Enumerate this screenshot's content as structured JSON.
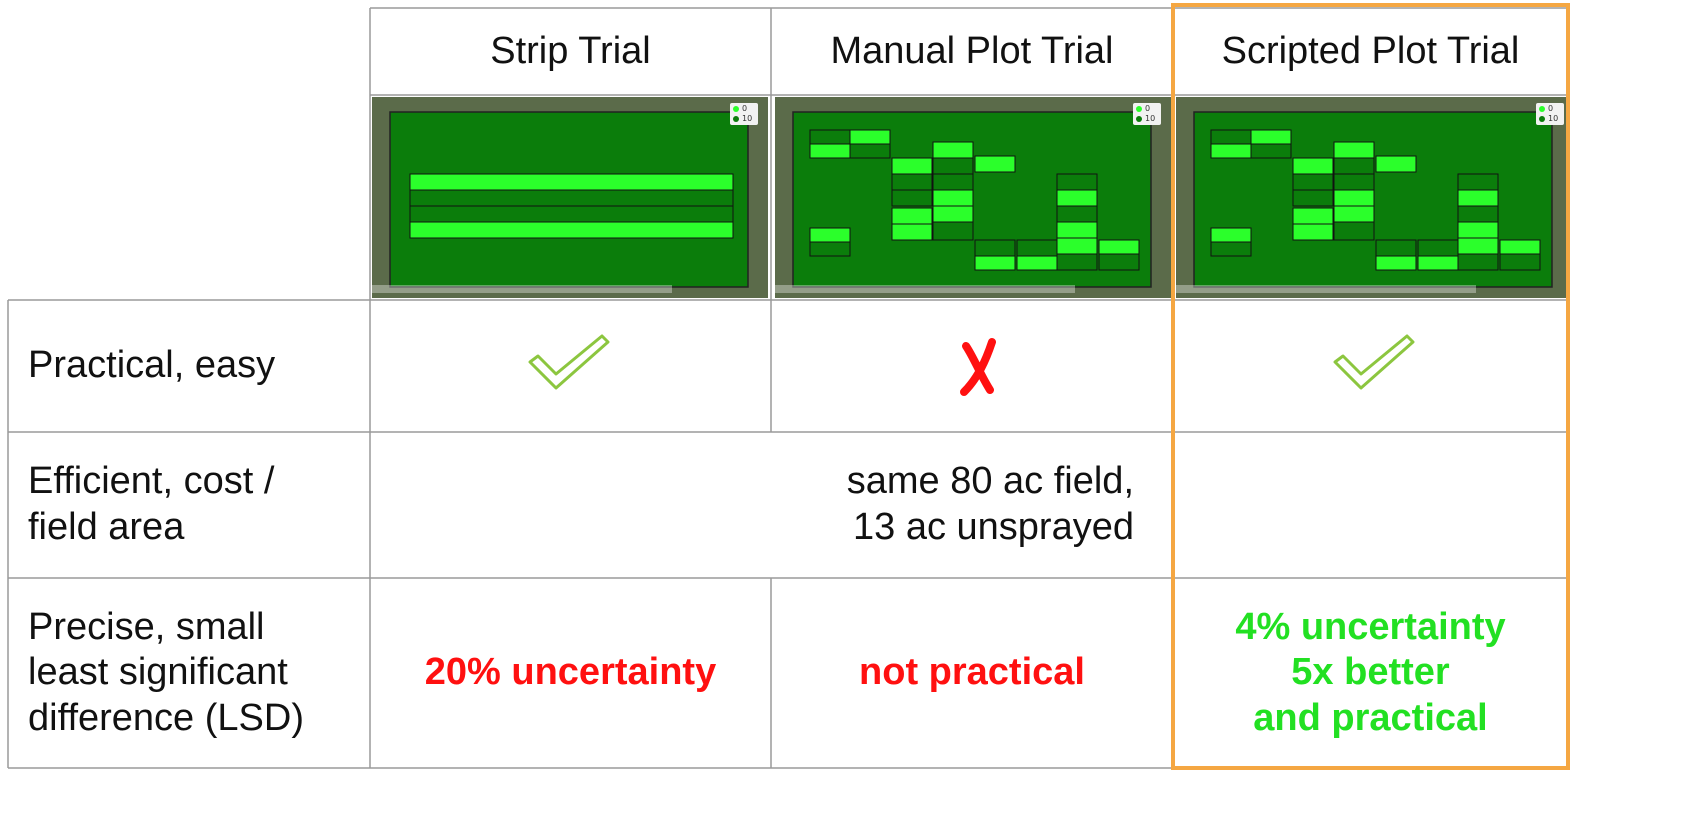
{
  "table": {
    "columns": [
      "Strip Trial",
      "Manual Plot Trial",
      "Scripted Plot Trial"
    ],
    "map_legend": [
      "0",
      "10"
    ],
    "rows": [
      {
        "label": "Practical, easy"
      },
      {
        "label": "Efficient, cost /\nfield area",
        "merged_cell": "same 80 ac field,\n13 ac unsprayed"
      },
      {
        "label": "Precise, small\nleast significant\ndifference (LSD)",
        "cells": [
          "20% uncertainty",
          "not practical",
          "4% uncertainty\n5x better\nand practical"
        ]
      }
    ]
  }
}
